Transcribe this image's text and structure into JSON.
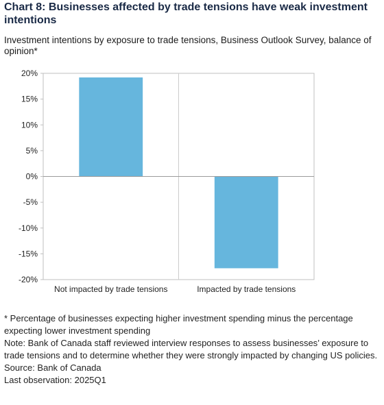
{
  "title": "Chart 8: Businesses affected by trade tensions have weak investment intentions",
  "subtitle": "Investment intentions by exposure to trade tensions, Business Outlook Survey, balance of opinion*",
  "footnote": "* Percentage of businesses expecting higher investment spending minus the percentage expecting lower investment spending",
  "note": "Note: Bank of Canada staff reviewed interview responses to assess businesses’ exposure to trade tensions and to determine whether they were strongly impacted by changing US policies.",
  "source": "Source: Bank of Canada",
  "last_observation": "Last observation: 2025Q1",
  "colors": {
    "bar": "#66b6dd",
    "axis": "#bfbfbf",
    "grid": "#cccccc"
  },
  "chart_data": {
    "type": "bar",
    "categories": [
      "Not impacted by trade tensions",
      "Impacted by trade tensions"
    ],
    "values": [
      19.2,
      -17.8
    ],
    "ylim": [
      -20,
      20
    ],
    "yticks": [
      20,
      15,
      10,
      5,
      0,
      -5,
      -10,
      -15,
      -20
    ],
    "ytick_labels": [
      "20%",
      "15%",
      "10%",
      "5%",
      "0%",
      "-5%",
      "-10%",
      "-15%",
      "-20%"
    ],
    "xlabel": "",
    "ylabel": "",
    "grid": "vertical separator between categories",
    "legend": "none"
  }
}
